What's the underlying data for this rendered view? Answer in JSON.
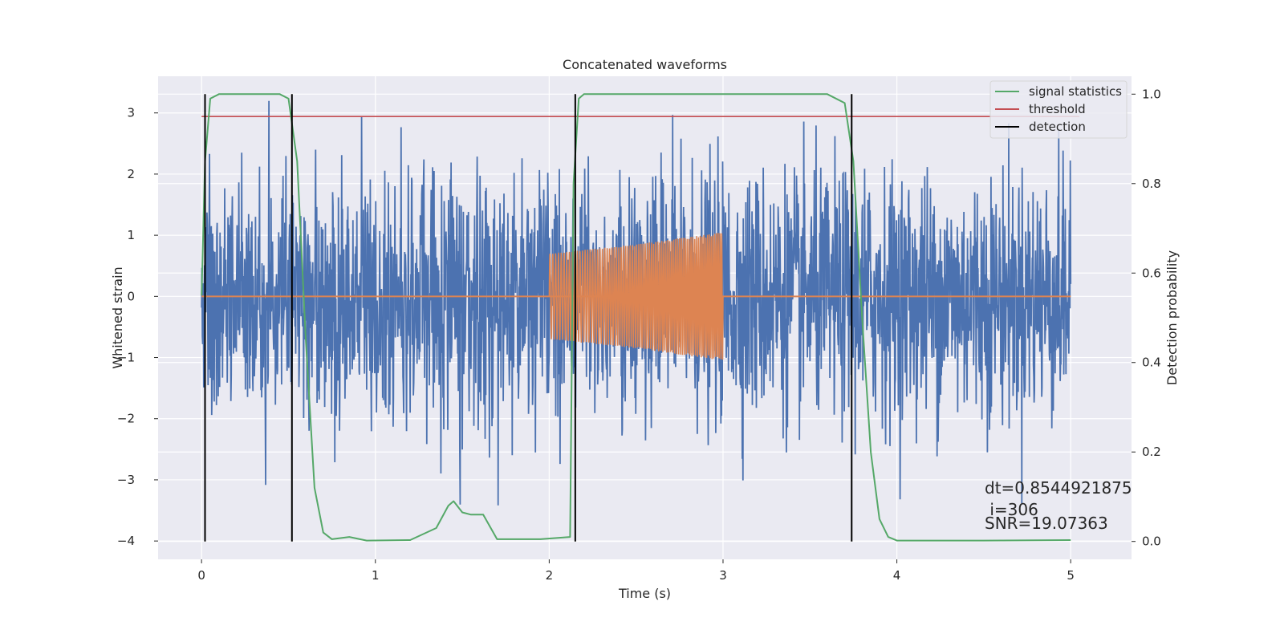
{
  "chart_data": {
    "type": "line",
    "title": "Concatenated waveforms",
    "xlabel": "Time (s)",
    "ylabel": "Whitened strain",
    "y2label": "Detection probability",
    "xlim": [
      -0.25,
      5.35
    ],
    "ylim": [
      -4.3,
      3.6
    ],
    "y2lim": [
      -0.04,
      1.04
    ],
    "x_ticks": [
      "0",
      "1",
      "2",
      "3",
      "4",
      "5"
    ],
    "x_tick_values": [
      0,
      1,
      2,
      3,
      4,
      5
    ],
    "y_ticks": [
      "−4",
      "−3",
      "−2",
      "−1",
      "0",
      "1",
      "2",
      "3"
    ],
    "y_tick_values": [
      -4,
      -3,
      -2,
      -1,
      0,
      1,
      2,
      3
    ],
    "y2_ticks": [
      "0.0",
      "0.2",
      "0.4",
      "0.6",
      "0.8",
      "1.0"
    ],
    "y2_tick_values": [
      0,
      0.2,
      0.4,
      0.6,
      0.8,
      1.0
    ],
    "grid": true,
    "legend_position": "top-right",
    "legend": [
      "signal statistics",
      "threshold",
      "detection"
    ],
    "colors": {
      "strain": "#4c72b0",
      "injected": "#dd8452",
      "signal_statistics": "#55a868",
      "threshold": "#c44e52",
      "detection": "#000000",
      "background": "#eaeaf2",
      "grid": "#ffffff"
    },
    "series": [
      {
        "name": "",
        "role": "whitened-strain-noise",
        "x_range": [
          0,
          5
        ],
        "typical_amplitude": 1.0,
        "max_abs": 3.9
      },
      {
        "name": "",
        "role": "injected-waveform",
        "x": [
          2.0,
          2.5,
          3.0
        ],
        "envelope": [
          0.7,
          0.85,
          1.05
        ]
      },
      {
        "name": "signal statistics",
        "axis": "right",
        "x": [
          0,
          0.02,
          0.05,
          0.1,
          0.45,
          0.5,
          0.55,
          0.6,
          0.65,
          0.7,
          0.75,
          0.85,
          0.95,
          1.2,
          1.35,
          1.42,
          1.45,
          1.5,
          1.55,
          1.62,
          1.7,
          1.95,
          2.12,
          2.14,
          2.17,
          2.2,
          3.6,
          3.7,
          3.75,
          3.8,
          3.85,
          3.9,
          3.95,
          4.0,
          4.5,
          5.0
        ],
        "y": [
          0.55,
          0.85,
          0.99,
          1.0,
          1.0,
          0.99,
          0.85,
          0.45,
          0.12,
          0.02,
          0.005,
          0.01,
          0.002,
          0.003,
          0.03,
          0.08,
          0.09,
          0.065,
          0.06,
          0.06,
          0.005,
          0.005,
          0.01,
          0.8,
          0.99,
          1.0,
          1.0,
          0.98,
          0.85,
          0.5,
          0.2,
          0.05,
          0.01,
          0.002,
          0.002,
          0.003
        ]
      },
      {
        "name": "threshold",
        "axis": "right",
        "x": [
          0,
          5.05
        ],
        "y": [
          0.95,
          0.95
        ]
      }
    ],
    "detections": [
      0.02,
      0.52,
      2.15,
      3.74
    ],
    "annotations": [
      "dt=0.8544921875",
      " i=306",
      "SNR=19.07363"
    ]
  }
}
